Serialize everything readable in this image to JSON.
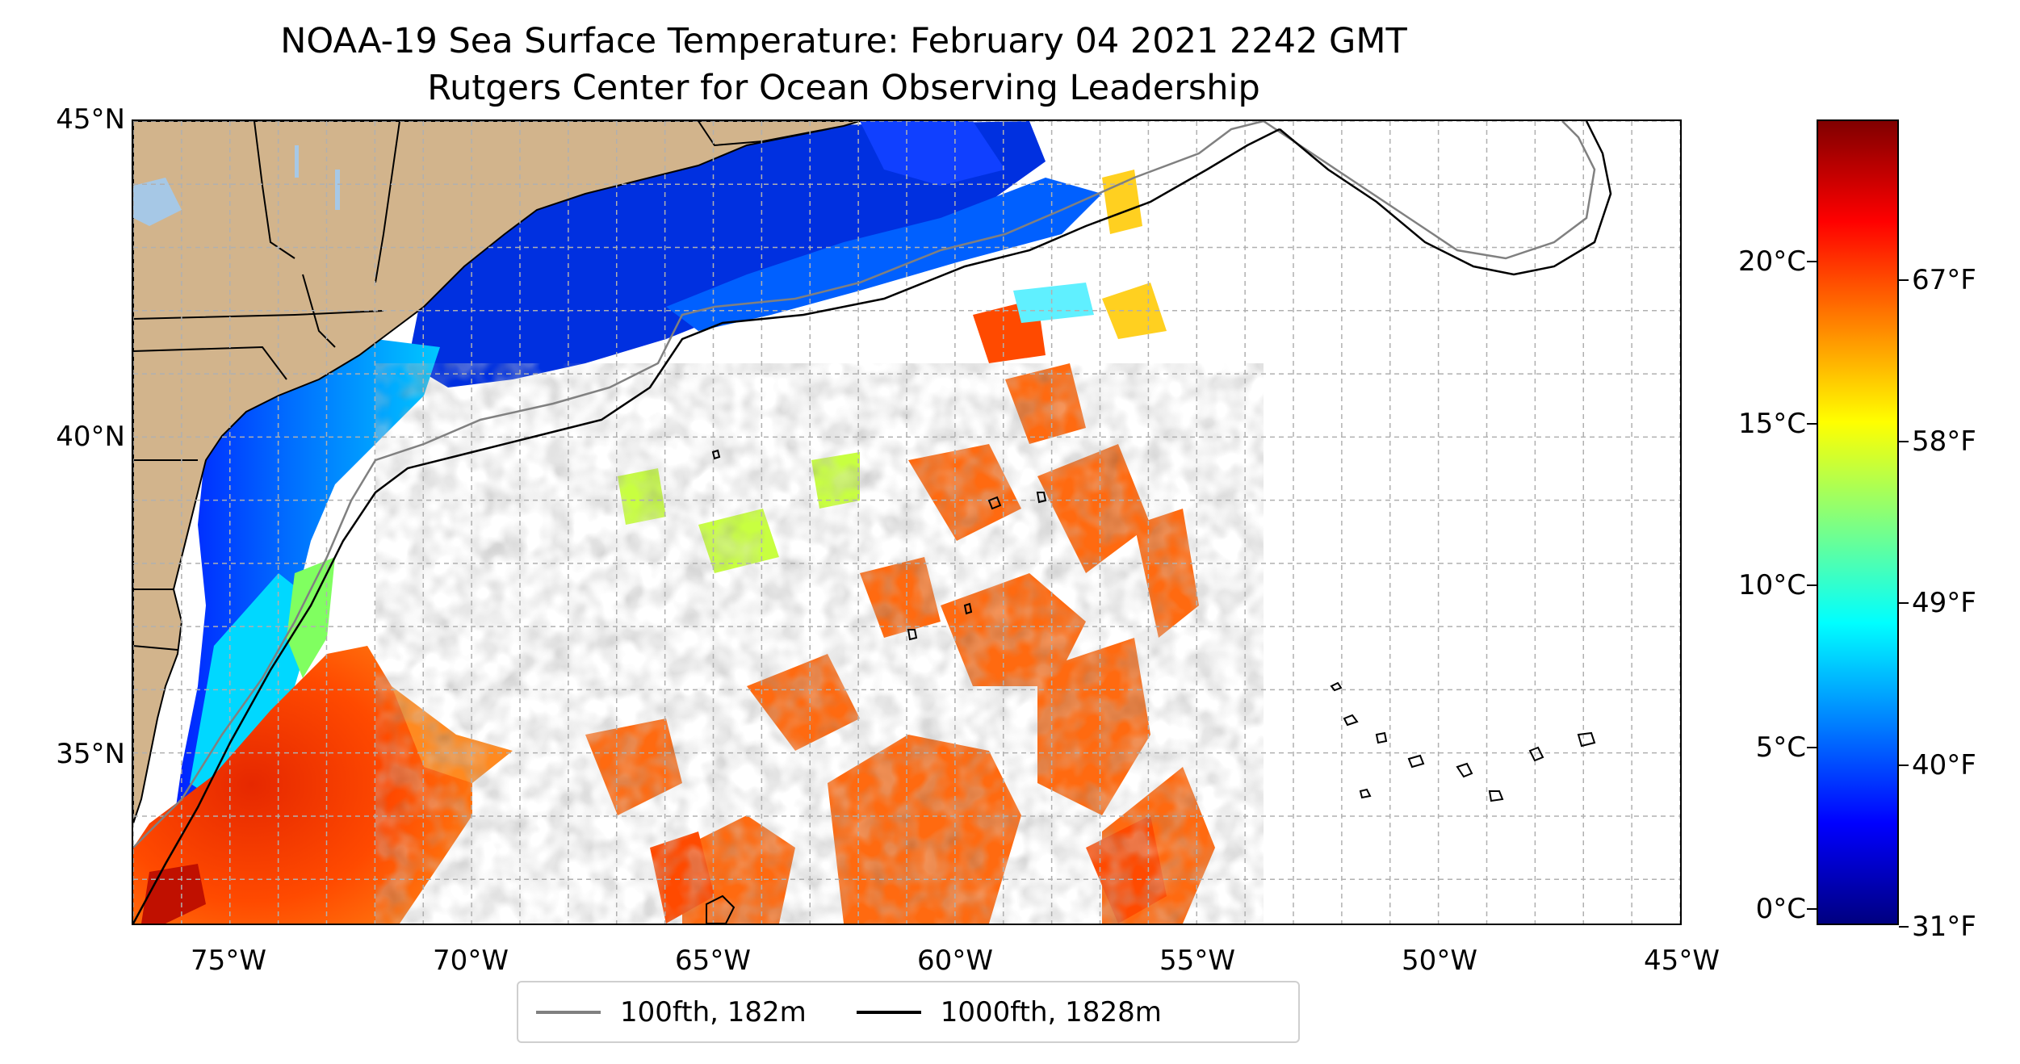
{
  "title": {
    "line1": "NOAA-19 Sea Surface Temperature: February 04 2021 2242 GMT",
    "line2": "Rutgers Center for Ocean Observing Leadership"
  },
  "map": {
    "extent": {
      "lon_min": -77,
      "lon_max": -45,
      "lat_min": 32.3,
      "lat_max": 45
    },
    "lon_ticks": [
      {
        "value": -75,
        "label": "75°W"
      },
      {
        "value": -70,
        "label": "70°W"
      },
      {
        "value": -65,
        "label": "65°W"
      },
      {
        "value": -60,
        "label": "60°W"
      },
      {
        "value": -55,
        "label": "55°W"
      },
      {
        "value": -50,
        "label": "50°W"
      },
      {
        "value": -45,
        "label": "45°W"
      }
    ],
    "lat_ticks": [
      {
        "value": 45,
        "label": "45°N"
      },
      {
        "value": 40,
        "label": "40°N"
      },
      {
        "value": 35,
        "label": "35°N"
      }
    ],
    "grid": true,
    "colors": {
      "land": "#d2b48c",
      "shelf_100fth": "#808080",
      "shelf_1000fth": "#000000",
      "grid": "#b0b0b0",
      "lakes": "#a6c8e6"
    }
  },
  "legend": {
    "placement": "bottom-center",
    "items": [
      {
        "label": "100fth, 182m",
        "color": "#808080"
      },
      {
        "label": "1000fth, 1828m",
        "color": "#000000"
      }
    ]
  },
  "colorbar": {
    "celsius_ticks": [
      {
        "value": 20,
        "label": "20°C"
      },
      {
        "value": 15,
        "label": "15°C"
      },
      {
        "value": 10,
        "label": "10°C"
      },
      {
        "value": 5,
        "label": "5°C"
      },
      {
        "value": 0,
        "label": "0°C"
      }
    ],
    "fahrenheit_ticks": [
      {
        "value": 67,
        "label": "67°F"
      },
      {
        "value": 58,
        "label": "58°F"
      },
      {
        "value": 49,
        "label": "49°F"
      },
      {
        "value": 40,
        "label": "40°F"
      },
      {
        "value": 31,
        "label": "31°F"
      }
    ],
    "range_celsius": [
      -0.5,
      24.4
    ],
    "colormap": "jet"
  }
}
